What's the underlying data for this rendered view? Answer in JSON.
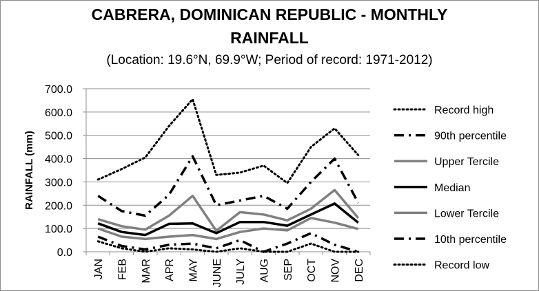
{
  "chart_data": {
    "type": "line",
    "title": "CABRERA, DOMINICAN REPUBLIC - MONTHLY RAINFALL",
    "title_lines": [
      "CABRERA, DOMINICAN REPUBLIC - MONTHLY",
      "RAINFALL"
    ],
    "subtitle": "(Location: 19.6°N, 69.9°W; Period of record: 1971-2012)",
    "ylabel": "RAINFALL (mm)",
    "xlabel": "",
    "ylim": [
      0,
      700
    ],
    "yticks": [
      0,
      100,
      200,
      300,
      400,
      500,
      600,
      700
    ],
    "ytick_labels": [
      "0.0",
      "100.0",
      "200.0",
      "300.0",
      "400.0",
      "500.0",
      "600.0",
      "700.0"
    ],
    "categories": [
      "JAN",
      "FEB",
      "MAR",
      "APR",
      "MAY",
      "JUNE",
      "JULY",
      "AUG",
      "SEP",
      "OCT",
      "NOV",
      "DEC"
    ],
    "grid": "horizontal",
    "legend_position": "right",
    "series": [
      {
        "name": "Record high",
        "style": "dotted",
        "color": "#000000",
        "values": [
          310,
          355,
          405,
          540,
          655,
          330,
          340,
          370,
          295,
          450,
          530,
          415
        ]
      },
      {
        "name": "90th percentile",
        "style": "dash-dot",
        "color": "#000000",
        "values": [
          240,
          175,
          155,
          245,
          410,
          200,
          220,
          240,
          185,
          300,
          400,
          210
        ]
      },
      {
        "name": "Upper Tercile",
        "style": "solid-thick",
        "color": "#808080",
        "values": [
          140,
          110,
          95,
          155,
          240,
          90,
          170,
          160,
          135,
          185,
          265,
          145
        ]
      },
      {
        "name": "Median",
        "style": "solid-thick",
        "color": "#000000",
        "values": [
          122,
          85,
          72,
          120,
          122,
          80,
          128,
          128,
          112,
          160,
          207,
          125
        ]
      },
      {
        "name": "Lower Tercile",
        "style": "solid-thick",
        "color": "#808080",
        "values": [
          100,
          65,
          55,
          65,
          72,
          55,
          85,
          100,
          92,
          145,
          125,
          98
        ]
      },
      {
        "name": "10th percentile",
        "style": "dash-dot",
        "color": "#000000",
        "values": [
          65,
          25,
          10,
          30,
          35,
          15,
          50,
          0,
          35,
          80,
          30,
          0
        ]
      },
      {
        "name": "Record low",
        "style": "dotted",
        "color": "#000000",
        "values": [
          45,
          15,
          0,
          15,
          10,
          0,
          15,
          0,
          0,
          35,
          0,
          0
        ]
      }
    ]
  }
}
